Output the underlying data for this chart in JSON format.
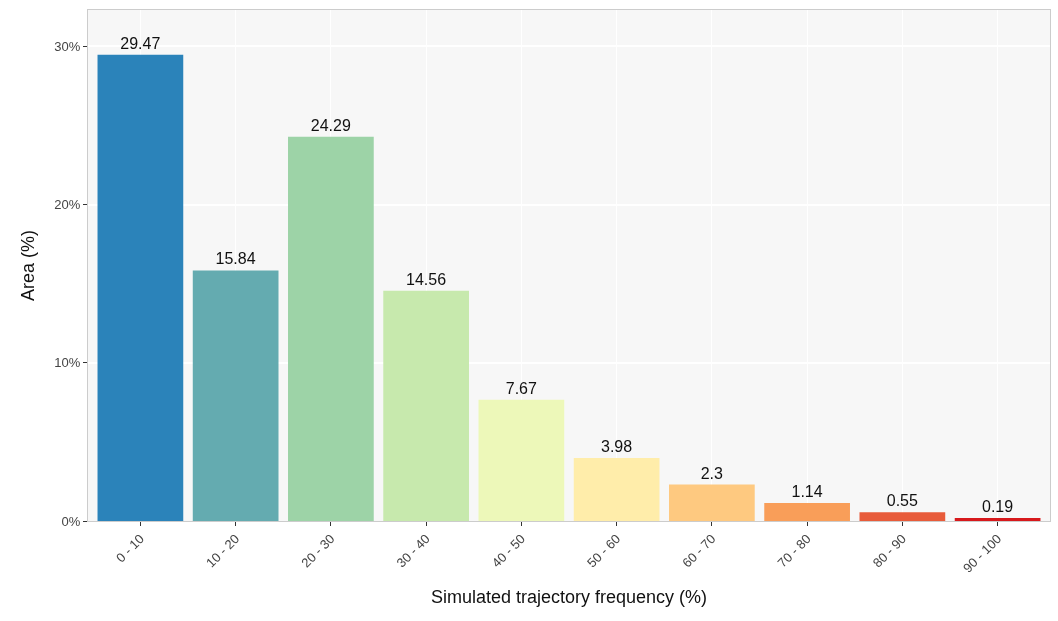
{
  "chart_data": {
    "type": "bar",
    "xlabel": "Simulated trajectory frequency (%)",
    "ylabel": "Area (%)",
    "categories": [
      "0 - 10",
      "10 - 20",
      "20 - 30",
      "30 - 40",
      "40 - 50",
      "50 - 60",
      "60 - 70",
      "70 - 80",
      "80 - 90",
      "90 - 100"
    ],
    "values": [
      29.47,
      15.84,
      24.29,
      14.56,
      7.67,
      3.98,
      2.3,
      1.14,
      0.55,
      0.19
    ],
    "colors": [
      "#2b83ba",
      "#64abb0",
      "#9dd3a7",
      "#c7e9ad",
      "#edf8b9",
      "#ffedaa",
      "#fec980",
      "#f99e59",
      "#e85b3a",
      "#d7191c"
    ],
    "value_labels": [
      "29.47",
      "15.84",
      "24.29",
      "14.56",
      "7.67",
      "3.98",
      "2.3",
      "1.14",
      "0.55",
      "0.19"
    ],
    "ylim": [
      0,
      32.3
    ],
    "yticks": [
      {
        "value": 0,
        "label": "0%"
      },
      {
        "value": 10,
        "label": "10%"
      },
      {
        "value": 20,
        "label": "20%"
      },
      {
        "value": 30,
        "label": "30%"
      }
    ],
    "grid": true
  }
}
